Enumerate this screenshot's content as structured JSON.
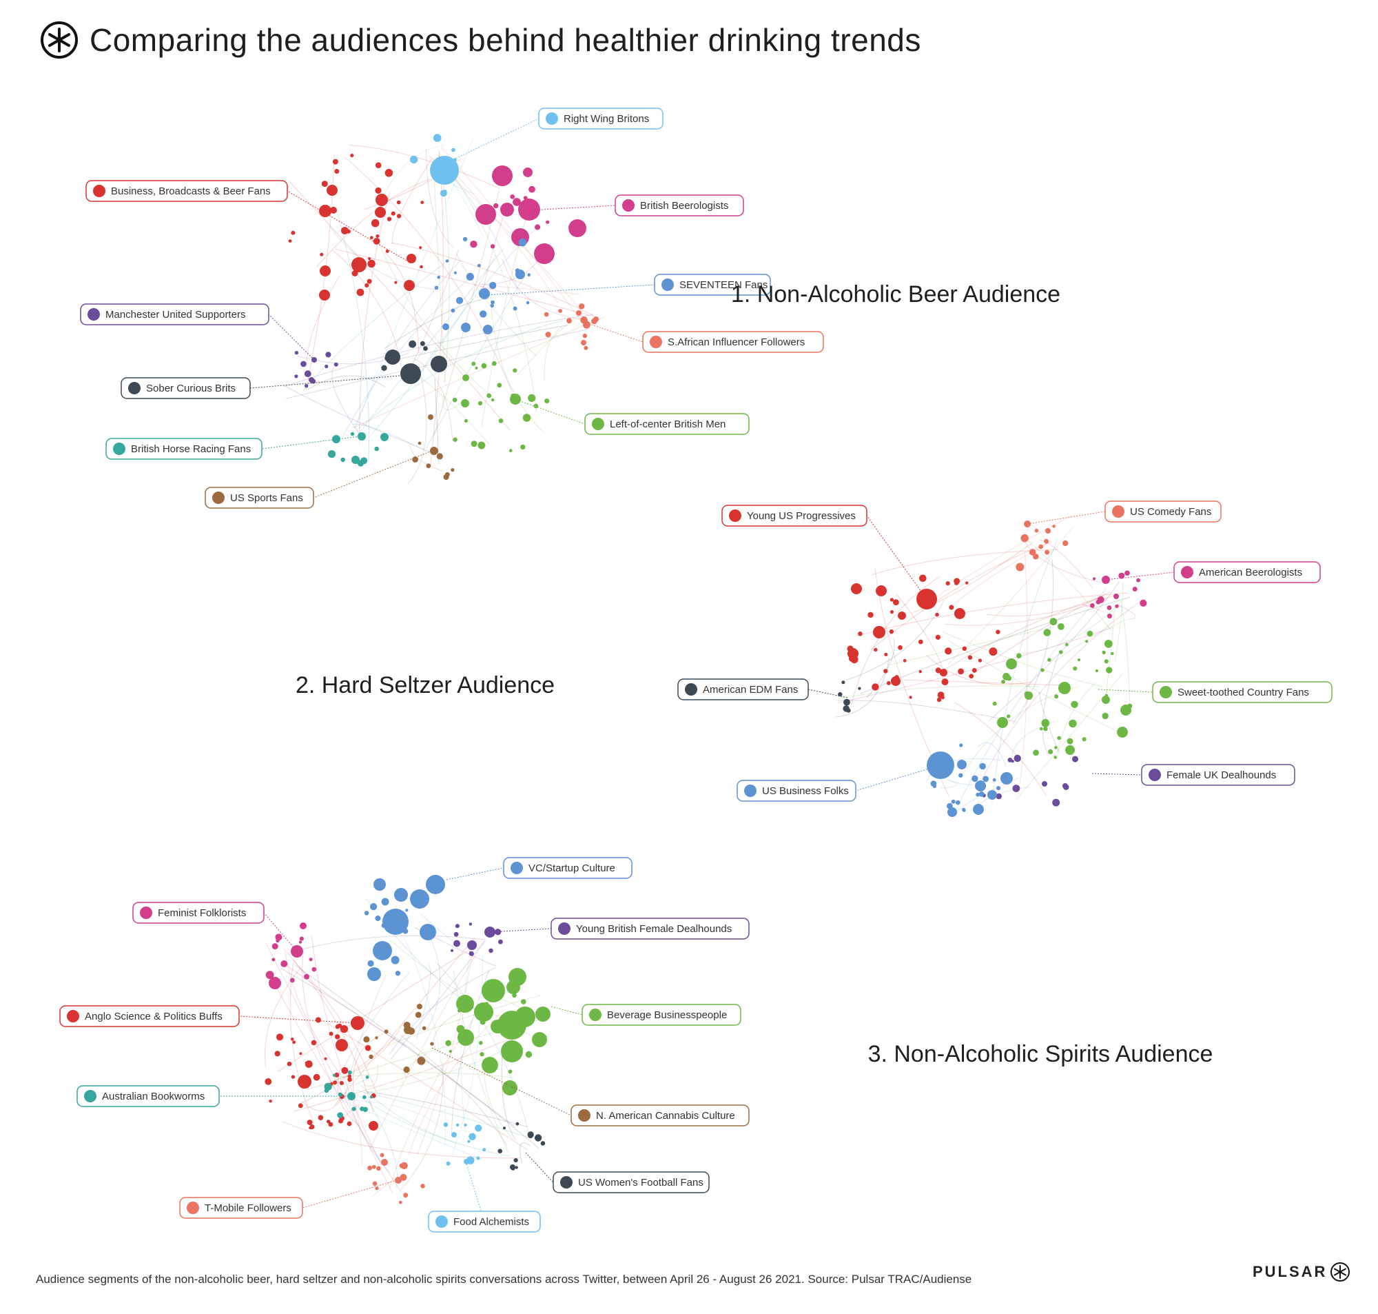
{
  "header": {
    "title": "Comparing the audiences behind healthier drinking trends",
    "logo_icon": "pulsar-asterisk-icon"
  },
  "footer": {
    "note": "Audience segments of the non-alcoholic beer, hard seltzer and non-alcoholic spirits conversations across Twitter, between April 26 - August 26 2021. Source: Pulsar TRAC/Audiense",
    "brand": "PULSAR"
  },
  "networks": [
    {
      "title": "1. Non-Alcoholic Beer Audience",
      "segments": [
        {
          "label": "Right Wing Britons",
          "color": "#6ec1ee"
        },
        {
          "label": "Business, Broadcasts & Beer Fans",
          "color": "#d9332f"
        },
        {
          "label": "British Beerologists",
          "color": "#d23d8c"
        },
        {
          "label": "SEVENTEEN Fans",
          "color": "#5b93d3"
        },
        {
          "label": "Manchester United Supporters",
          "color": "#6b4c9a"
        },
        {
          "label": "S.African Influencer Followers",
          "color": "#e8735f"
        },
        {
          "label": "Sober Curious Brits",
          "color": "#3d4a55"
        },
        {
          "label": "Left-of-center British Men",
          "color": "#6db845"
        },
        {
          "label": "British Horse Racing Fans",
          "color": "#35a79c"
        },
        {
          "label": "US Sports Fans",
          "color": "#9b6b3e"
        }
      ]
    },
    {
      "title": "2. Hard Seltzer Audience",
      "segments": [
        {
          "label": "Young US Progressives",
          "color": "#d9332f"
        },
        {
          "label": "US Comedy Fans",
          "color": "#e8735f"
        },
        {
          "label": "American Beerologists",
          "color": "#d23d8c"
        },
        {
          "label": "American EDM Fans",
          "color": "#3d4a55"
        },
        {
          "label": "Sweet-toothed Country Fans",
          "color": "#6db845"
        },
        {
          "label": "Female UK Dealhounds",
          "color": "#6b4c9a"
        },
        {
          "label": "US Business Folks",
          "color": "#5b93d3"
        }
      ]
    },
    {
      "title": "3. Non-Alcoholic Spirits Audience",
      "segments": [
        {
          "label": "VC/Startup Culture",
          "color": "#5b93d3"
        },
        {
          "label": "Feminist Folklorists",
          "color": "#d23d8c"
        },
        {
          "label": "Young British Female Dealhounds",
          "color": "#6b4c9a"
        },
        {
          "label": "Anglo Science & Politics Buffs",
          "color": "#d9332f"
        },
        {
          "label": "Beverage Businesspeople",
          "color": "#6db845"
        },
        {
          "label": "Australian Bookworms",
          "color": "#35a79c"
        },
        {
          "label": "N. American Cannabis Culture",
          "color": "#9b6b3e"
        },
        {
          "label": "US Women's Football Fans",
          "color": "#3d4a55"
        },
        {
          "label": "T-Mobile Followers",
          "color": "#e8735f"
        },
        {
          "label": "Food Alchemists",
          "color": "#6ec1ee"
        }
      ]
    }
  ]
}
